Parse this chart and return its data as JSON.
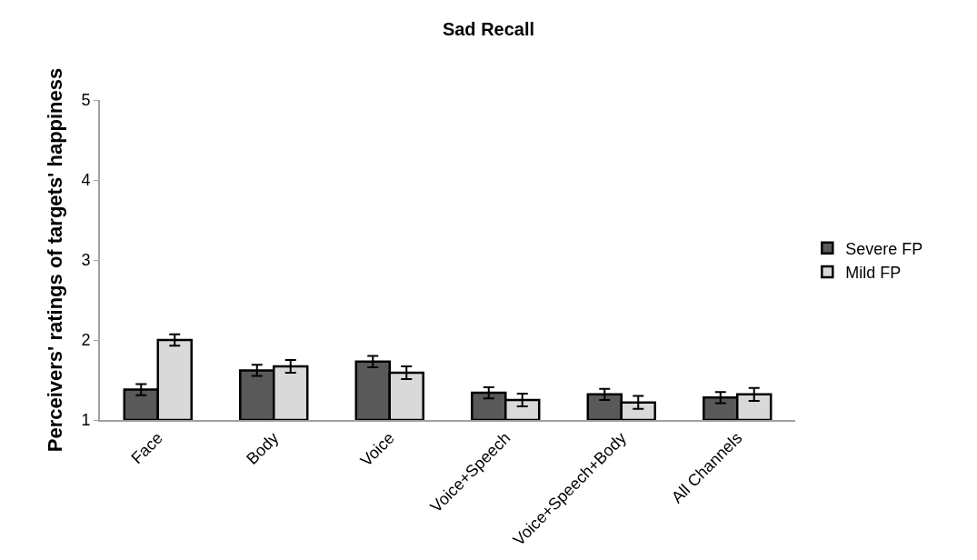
{
  "chart_data": {
    "type": "bar",
    "title": "Sad Recall",
    "ylabel": "Perceivers' ratings of targets' happiness",
    "categories": [
      "Face",
      "Body",
      "Voice",
      "Voice+Speech",
      "Voice+Speech+Body",
      "All Channels"
    ],
    "series": [
      {
        "name": "Severe FP",
        "color": "#595959",
        "values": [
          1.38,
          1.62,
          1.73,
          1.34,
          1.32,
          1.28
        ],
        "errors": [
          0.07,
          0.07,
          0.07,
          0.07,
          0.07,
          0.07
        ]
      },
      {
        "name": "Mild FP",
        "color": "#d9d9d9",
        "values": [
          2.0,
          1.67,
          1.59,
          1.25,
          1.22,
          1.32
        ],
        "errors": [
          0.07,
          0.08,
          0.08,
          0.08,
          0.08,
          0.08
        ]
      }
    ],
    "ylim": [
      1,
      5
    ],
    "yticks": [
      1,
      2,
      3,
      4,
      5
    ],
    "legend": "right"
  }
}
